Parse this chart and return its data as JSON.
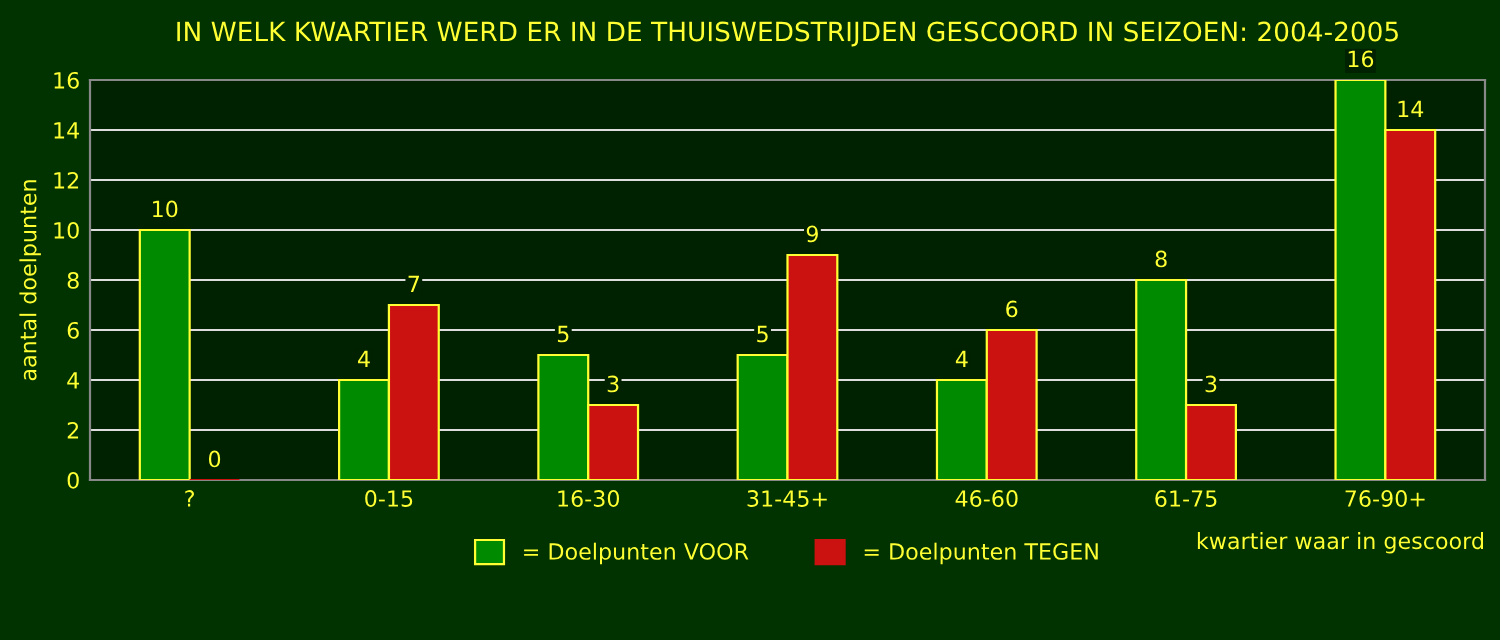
{
  "chart_data": {
    "type": "bar",
    "title": "IN WELK KWARTIER WERD ER IN DE THUISWEDSTRIJDEN GESCOORD IN SEIZOEN: 2004-2005",
    "xlabel": "kwartier waar in gescoord",
    "ylabel": "aantal doelpunten",
    "categories": [
      "?",
      "0-15",
      "16-30",
      "31-45+",
      "46-60",
      "61-75",
      "76-90+"
    ],
    "series": [
      {
        "name": "= Doelpunten VOOR",
        "color": "#008a00",
        "values": [
          10,
          4,
          5,
          5,
          4,
          8,
          16
        ]
      },
      {
        "name": "= Doelpunten TEGEN",
        "color": "#cc1111",
        "values": [
          0,
          7,
          3,
          9,
          6,
          3,
          14
        ]
      }
    ],
    "ylim": [
      0,
      16
    ],
    "yticks": [
      0,
      2,
      4,
      6,
      8,
      10,
      12,
      14,
      16
    ],
    "grid": "y",
    "legend": "bottom",
    "data_labels": true
  }
}
